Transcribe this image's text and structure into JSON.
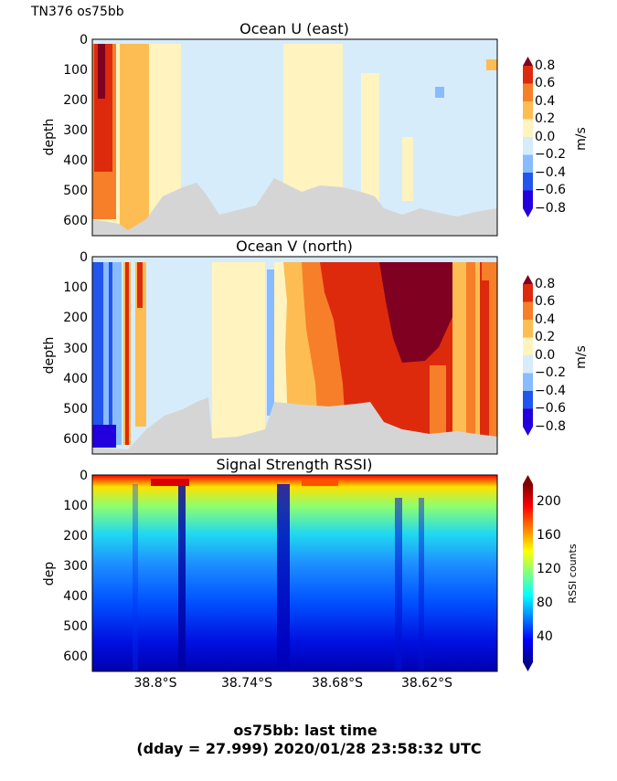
{
  "figure": {
    "cruise_label": "TN376 os75bb",
    "footer_line1": "os75bb: last time",
    "footer_line2": "(dday = 27.999) 2020/01/28 23:58:32 UTC"
  },
  "chart_data": [
    {
      "type": "heatmap",
      "title": "Ocean U (east)",
      "ylabel": "depth",
      "yticks": [
        "0",
        "100",
        "200",
        "300",
        "400",
        "500",
        "600"
      ],
      "ylim": [
        650,
        0
      ],
      "colorbar": {
        "label": "m/s",
        "ticks": [
          "0.8",
          "0.6",
          "0.4",
          "0.2",
          "0.0",
          "−0.2",
          "−0.4",
          "−0.6",
          "−0.8"
        ],
        "levels": [
          -0.8,
          -0.6,
          -0.4,
          -0.2,
          0.0,
          0.2,
          0.4,
          0.6,
          0.8
        ]
      },
      "columns_approx_ms": [
        {
          "from": "west edge",
          "to": "38.82S",
          "u": 0.7
        },
        {
          "from": "38.82S",
          "to": "38.80S",
          "u": 0.4
        },
        {
          "from": "38.80S",
          "to": "38.76S",
          "u": 0.1
        },
        {
          "from": "38.76S",
          "to": "38.70S",
          "u": -0.1
        },
        {
          "from": "38.70S",
          "to": "38.65S",
          "u": 0.1
        },
        {
          "from": "38.65S",
          "to": "east edge",
          "u": -0.1
        }
      ]
    },
    {
      "type": "heatmap",
      "title": "Ocean V (north)",
      "ylabel": "depth",
      "yticks": [
        "0",
        "100",
        "200",
        "300",
        "400",
        "500",
        "600"
      ],
      "ylim": [
        650,
        0
      ],
      "colorbar": {
        "label": "m/s",
        "ticks": [
          "0.8",
          "0.6",
          "0.4",
          "0.2",
          "0.0",
          "−0.2",
          "−0.4",
          "−0.6",
          "−0.8"
        ],
        "levels": [
          -0.8,
          -0.6,
          -0.4,
          -0.2,
          0.0,
          0.2,
          0.4,
          0.6,
          0.8
        ]
      },
      "columns_approx_ms": [
        {
          "from": "west edge",
          "to": "38.83S",
          "v": -0.3
        },
        {
          "from": "38.83S",
          "to": "38.75S",
          "v": -0.1
        },
        {
          "from": "38.75S",
          "to": "38.72S",
          "v": 0.1
        },
        {
          "from": "38.72S",
          "to": "38.68S",
          "v": 0.5
        },
        {
          "from": "38.68S",
          "to": "38.62S",
          "v": 0.8
        },
        {
          "from": "38.62S",
          "to": "east edge",
          "v": 0.4
        }
      ]
    },
    {
      "type": "heatmap",
      "title": "Signal Strength RSSI)",
      "ylabel": "dep",
      "yticks": [
        "0",
        "100",
        "200",
        "300",
        "400",
        "500",
        "600"
      ],
      "ylim": [
        650,
        0
      ],
      "xlabel": "",
      "xticks": [
        "38.8°S",
        "38.74°S",
        "38.68°S",
        "38.62°S"
      ],
      "xtick_values": [
        -38.8,
        -38.74,
        -38.68,
        -38.62
      ],
      "colorbar": {
        "label": "RSSI counts",
        "ticks": [
          "200",
          "160",
          "120",
          "80",
          "40"
        ],
        "range": [
          20,
          220
        ]
      },
      "rssi_vs_depth_approx": [
        {
          "depth": 0,
          "rssi": 200
        },
        {
          "depth": 50,
          "rssi": 140
        },
        {
          "depth": 100,
          "rssi": 115
        },
        {
          "depth": 200,
          "rssi": 90
        },
        {
          "depth": 300,
          "rssi": 70
        },
        {
          "depth": 400,
          "rssi": 55
        },
        {
          "depth": 500,
          "rssi": 45
        },
        {
          "depth": 600,
          "rssi": 38
        }
      ]
    }
  ],
  "colors": {
    "vel_levels": [
      "#2200dd",
      "#2255ee",
      "#88bbff",
      "#d6ecfb",
      "#fff3c0",
      "#fdbd52",
      "#f77f2a",
      "#dd2a0d",
      "#7f0020"
    ],
    "bottom_mask": "#d5d5d5"
  }
}
